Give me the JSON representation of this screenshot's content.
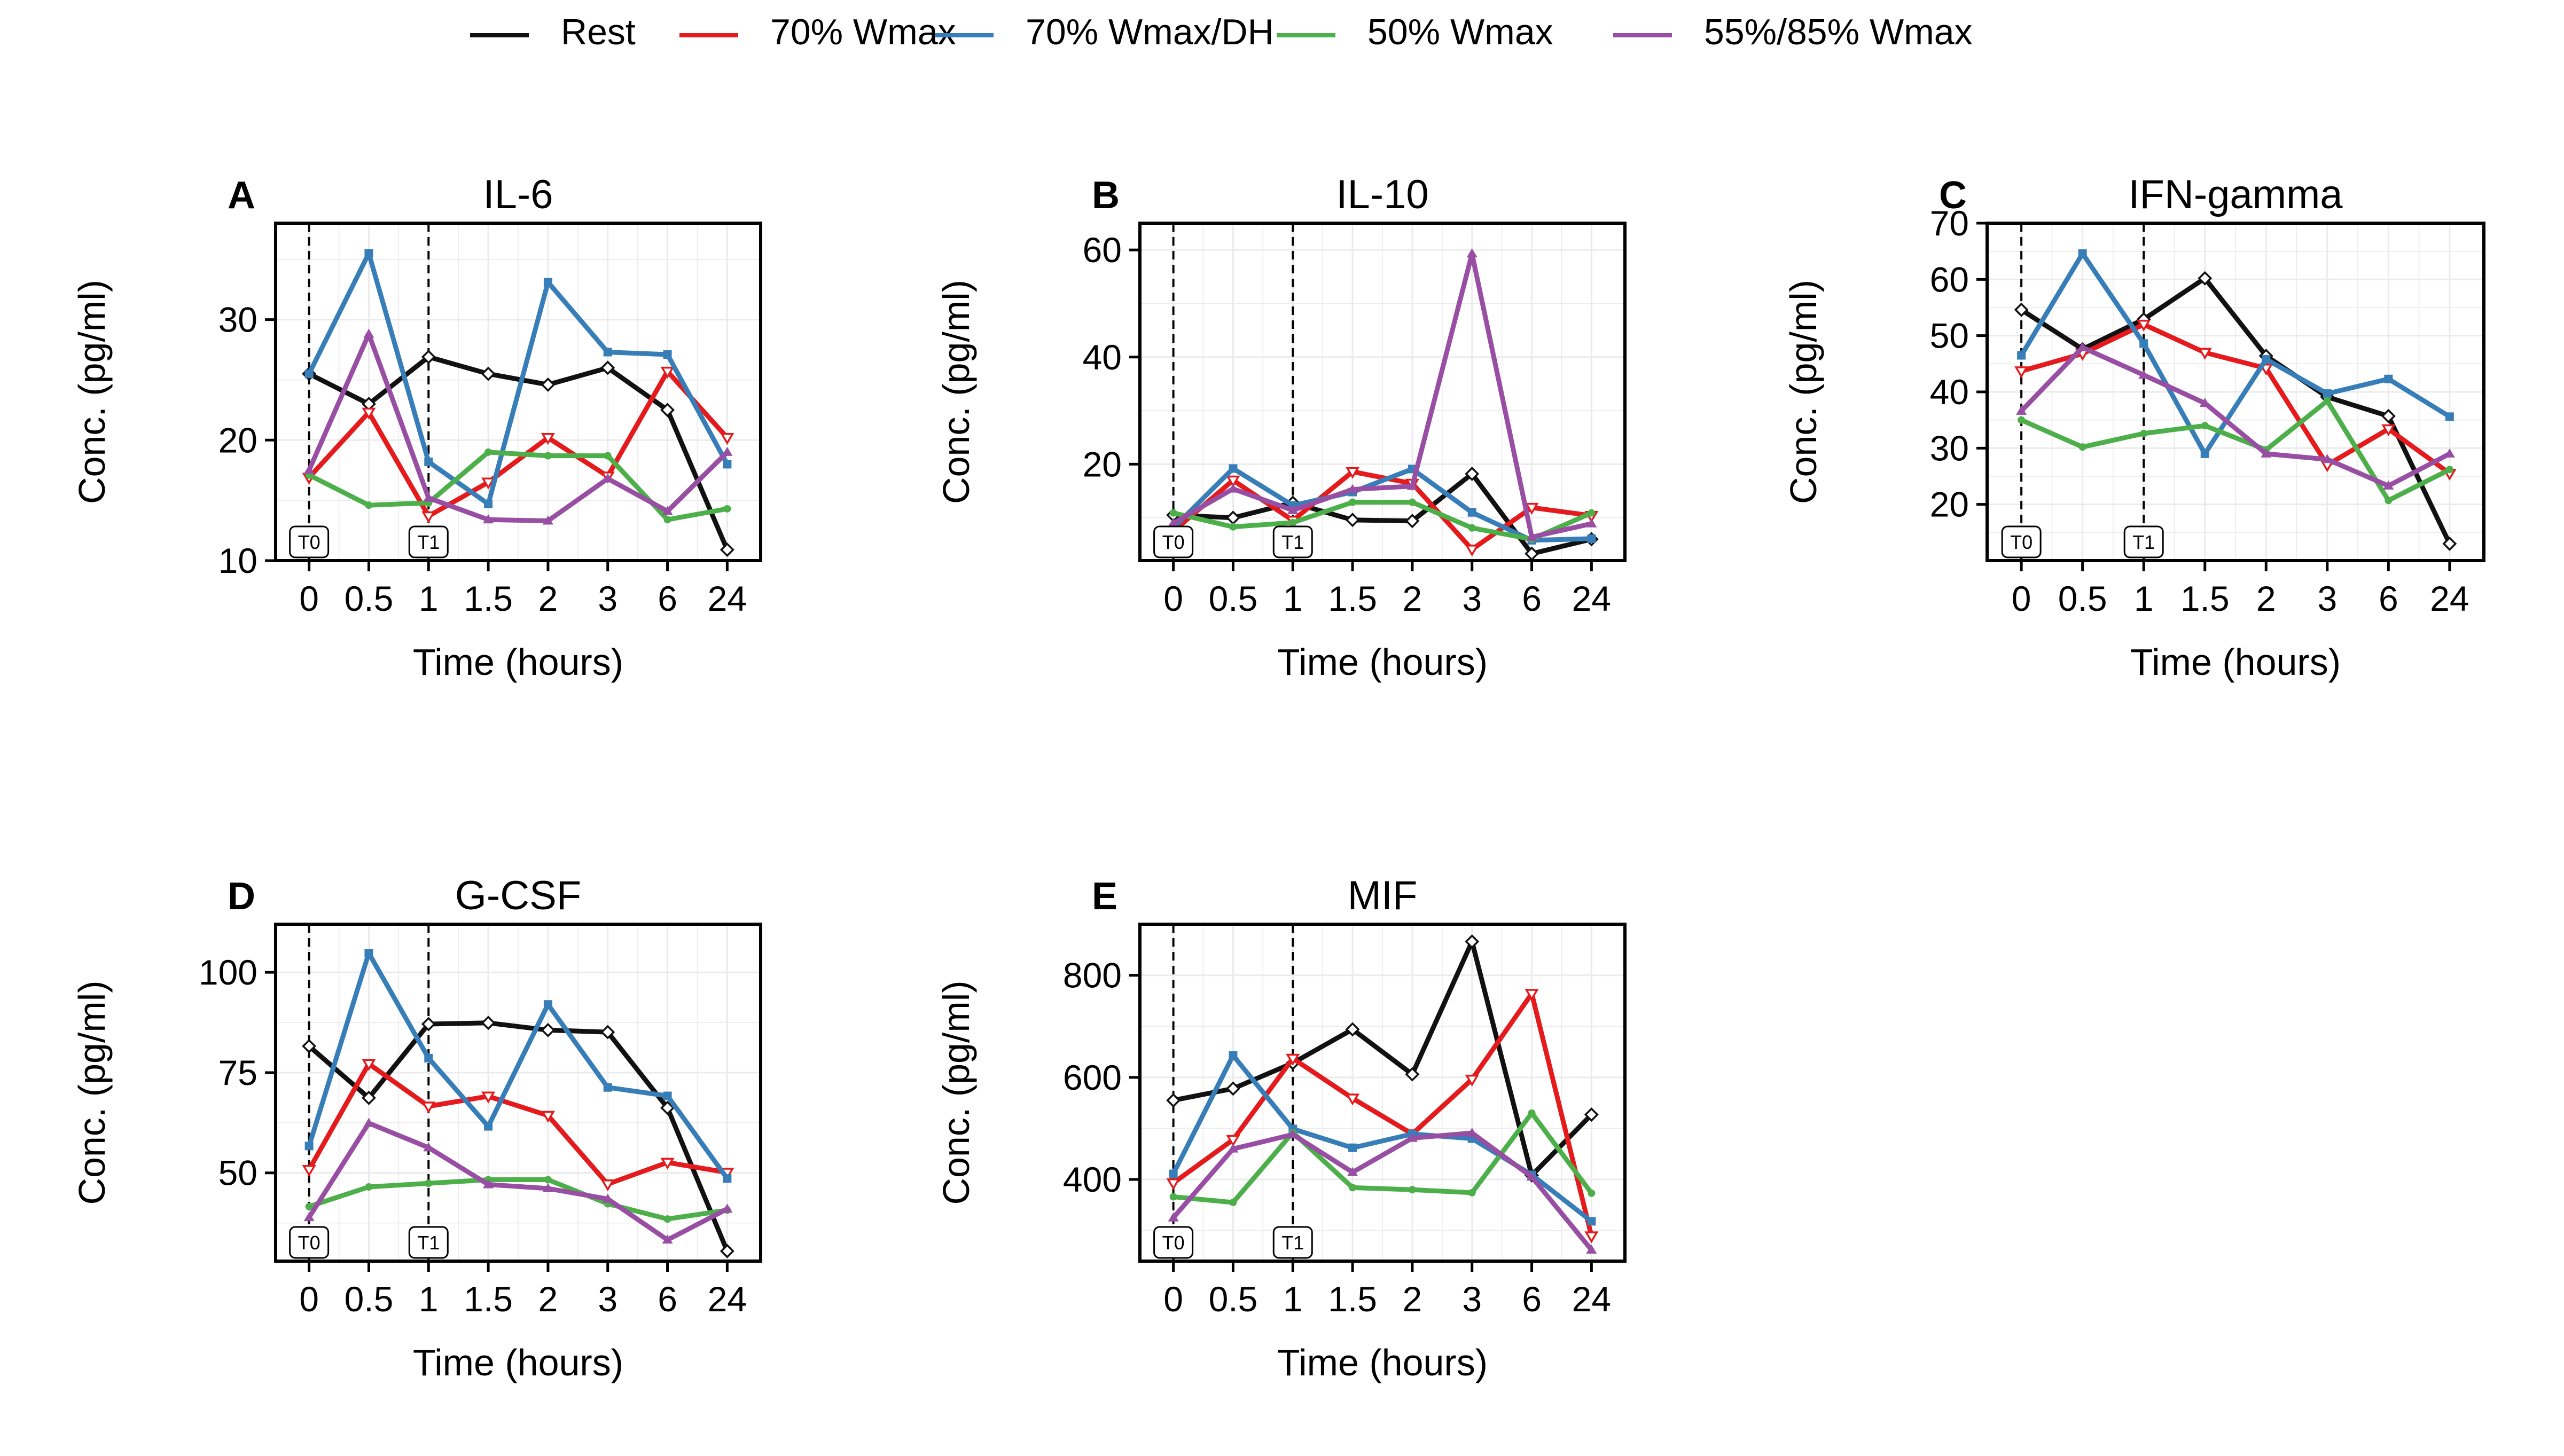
{
  "legend": {
    "placement": "top-center",
    "entries": [
      {
        "name": "Rest",
        "color": "#111111"
      },
      {
        "name": "70% Wmax",
        "color": "#e41a1c"
      },
      {
        "name": "70% Wmax/DH",
        "color": "#377eb8"
      },
      {
        "name": "50% Wmax",
        "color": "#4daf4a"
      },
      {
        "name": "55%/85% Wmax",
        "color": "#984ea3"
      }
    ]
  },
  "markers": {
    "T0": "T0",
    "T1": "T1"
  },
  "chart_data": [
    {
      "type": "line",
      "panel": "A",
      "title": "IL-6",
      "xlabel": "Time (hours)",
      "ylabel": "Conc. (pg/ml)",
      "x": [
        "0",
        "0.5",
        "1",
        "1.5",
        "2",
        "3",
        "6",
        "24"
      ],
      "ylim": [
        10,
        38
      ],
      "yticks": [
        10,
        20,
        30
      ],
      "grid": true,
      "series": [
        {
          "name": "Rest",
          "values": [
            25.5,
            23.0,
            26.9,
            25.5,
            24.6,
            26.0,
            22.5,
            10.9
          ]
        },
        {
          "name": "70% Wmax",
          "values": [
            16.9,
            22.3,
            13.7,
            16.5,
            20.2,
            17.0,
            25.7,
            20.2
          ]
        },
        {
          "name": "70% Wmax/DH",
          "values": [
            25.5,
            35.5,
            18.2,
            14.7,
            33.1,
            27.3,
            27.1,
            18.0
          ]
        },
        {
          "name": "50% Wmax",
          "values": [
            17.1,
            14.6,
            14.8,
            19.0,
            18.7,
            18.7,
            13.4,
            14.3
          ]
        },
        {
          "name": "55%/85% Wmax",
          "values": [
            17.5,
            28.8,
            15.2,
            13.4,
            13.3,
            16.8,
            14.1,
            19.0
          ]
        }
      ]
    },
    {
      "type": "line",
      "panel": "B",
      "title": "IL-10",
      "xlabel": "Time (hours)",
      "ylabel": "Conc. (pg/ml)",
      "x": [
        "0",
        "0.5",
        "1",
        "1.5",
        "2",
        "3",
        "6",
        "24"
      ],
      "ylim": [
        2,
        65
      ],
      "yticks": [
        20,
        40,
        60
      ],
      "grid": true,
      "series": [
        {
          "name": "Rest",
          "values": [
            10.5,
            10.0,
            12.8,
            9.6,
            9.4,
            18.2,
            3.3,
            6.0
          ]
        },
        {
          "name": "70% Wmax",
          "values": [
            7.5,
            17.0,
            9.5,
            18.6,
            16.4,
            4.1,
            11.9,
            10.4
          ]
        },
        {
          "name": "70% Wmax/DH",
          "values": [
            8.1,
            19.2,
            12.3,
            14.8,
            19.1,
            11.0,
            5.8,
            6.1
          ]
        },
        {
          "name": "50% Wmax",
          "values": [
            10.9,
            8.3,
            9.1,
            12.9,
            12.9,
            8.1,
            6.0,
            10.9
          ]
        },
        {
          "name": "55%/85% Wmax",
          "values": [
            9.0,
            15.4,
            11.4,
            15.3,
            15.9,
            59.3,
            6.4,
            8.9
          ]
        }
      ]
    },
    {
      "type": "line",
      "panel": "C",
      "title": "IFN-gamma",
      "xlabel": "Time (hours)",
      "ylabel": "Conc. (pg/ml)",
      "x": [
        "0",
        "0.5",
        "1",
        "1.5",
        "2",
        "3",
        "6",
        "24"
      ],
      "ylim": [
        10,
        70
      ],
      "yticks": [
        20,
        30,
        40,
        50,
        60,
        70
      ],
      "grid": true,
      "series": [
        {
          "name": "Rest",
          "values": [
            54.6,
            47.6,
            52.9,
            60.2,
            46.4,
            39.1,
            35.7,
            13.0
          ]
        },
        {
          "name": "70% Wmax",
          "values": [
            43.7,
            46.8,
            52.0,
            47.0,
            44.2,
            27.0,
            33.4,
            25.5
          ]
        },
        {
          "name": "70% Wmax/DH",
          "values": [
            46.5,
            64.6,
            48.6,
            29.0,
            45.8,
            39.7,
            42.3,
            35.6
          ]
        },
        {
          "name": "50% Wmax",
          "values": [
            35.0,
            30.2,
            32.6,
            34.0,
            29.7,
            38.4,
            20.7,
            26.2
          ]
        },
        {
          "name": "55%/85% Wmax",
          "values": [
            36.6,
            47.9,
            43.0,
            38.0,
            29.0,
            28.0,
            23.3,
            29.0
          ]
        }
      ]
    },
    {
      "type": "line",
      "panel": "D",
      "title": "G-CSF",
      "xlabel": "Time (hours)",
      "ylabel": "Conc. (pg/ml)",
      "x": [
        "0",
        "0.5",
        "1",
        "1.5",
        "2",
        "3",
        "6",
        "24"
      ],
      "ylim": [
        28,
        112
      ],
      "yticks": [
        50,
        75,
        100
      ],
      "grid": true,
      "series": [
        {
          "name": "Rest",
          "values": [
            81.6,
            68.7,
            87.1,
            87.4,
            85.6,
            85.1,
            66.2,
            30.5
          ]
        },
        {
          "name": "70% Wmax",
          "values": [
            50.8,
            77.2,
            66.6,
            69.1,
            64.3,
            47.2,
            52.6,
            50.1
          ]
        },
        {
          "name": "70% Wmax/DH",
          "values": [
            56.7,
            104.8,
            78.6,
            61.6,
            92.0,
            71.3,
            69.2,
            48.6
          ]
        },
        {
          "name": "50% Wmax",
          "values": [
            41.6,
            46.5,
            47.4,
            48.3,
            48.3,
            42.3,
            38.5,
            40.7
          ]
        },
        {
          "name": "55%/85% Wmax",
          "values": [
            38.9,
            62.4,
            56.3,
            47.1,
            46.1,
            43.5,
            33.3,
            41.0
          ]
        }
      ]
    },
    {
      "type": "line",
      "panel": "E",
      "title": "MIF",
      "xlabel": "Time (hours)",
      "ylabel": "Conc. (pg/ml)",
      "x": [
        "0",
        "0.5",
        "1",
        "1.5",
        "2",
        "3",
        "6",
        "24"
      ],
      "ylim": [
        240,
        900
      ],
      "yticks": [
        400,
        600,
        800
      ],
      "grid": true,
      "series": [
        {
          "name": "Rest",
          "values": [
            555,
            578,
            628,
            694,
            606,
            866,
            408,
            527
          ]
        },
        {
          "name": "70% Wmax",
          "values": [
            393,
            478,
            637,
            559,
            489,
            596,
            764,
            289
          ]
        },
        {
          "name": "70% Wmax/DH",
          "values": [
            411,
            643,
            499,
            462,
            489,
            480,
            409,
            318
          ]
        },
        {
          "name": "50% Wmax",
          "values": [
            366,
            355,
            492,
            384,
            380,
            374,
            530,
            373
          ]
        },
        {
          "name": "55%/85% Wmax",
          "values": [
            325,
            460,
            488,
            414,
            481,
            491,
            405,
            262
          ]
        }
      ]
    }
  ]
}
